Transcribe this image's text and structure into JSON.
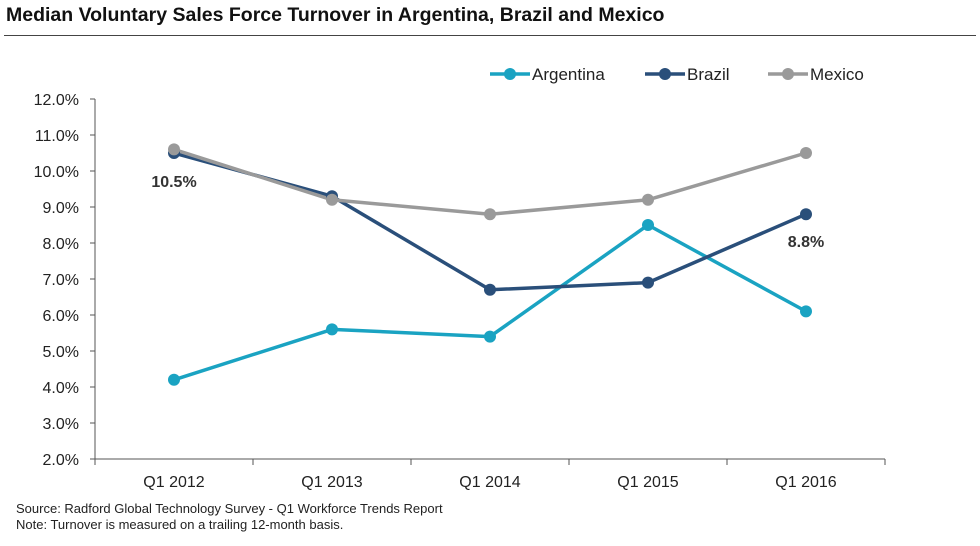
{
  "title": "Median Voluntary Sales Force Turnover in Argentina, Brazil and Mexico",
  "footer": {
    "source": "Source: Radford Global Technology Survey - Q1 Workforce Trends Report",
    "note": "Note: Turnover is measured on a trailing 12-month basis."
  },
  "chart_data": {
    "type": "line",
    "title": "Median Voluntary Sales Force Turnover in Argentina, Brazil and Mexico",
    "xlabel": "",
    "ylabel": "",
    "categories": [
      "Q1 2012",
      "Q1 2013",
      "Q1 2014",
      "Q1 2015",
      "Q1 2016"
    ],
    "ylim": [
      2.0,
      12.0
    ],
    "yticks": [
      "2.0%",
      "3.0%",
      "4.0%",
      "5.0%",
      "6.0%",
      "7.0%",
      "8.0%",
      "9.0%",
      "10.0%",
      "11.0%",
      "12.0%"
    ],
    "grid": false,
    "legend_position": "top-right",
    "series": [
      {
        "name": "Argentina",
        "color": "#1aa3c2",
        "values": [
          4.2,
          5.6,
          5.4,
          8.5,
          6.1
        ]
      },
      {
        "name": "Brazil",
        "color": "#2a4f7a",
        "values": [
          10.5,
          9.3,
          6.7,
          6.9,
          8.8
        ]
      },
      {
        "name": "Mexico",
        "color": "#9a9a9a",
        "values": [
          10.6,
          9.2,
          8.8,
          9.2,
          10.5
        ]
      }
    ],
    "annotations": [
      {
        "text": "10.5%",
        "series": "Brazil",
        "category": "Q1 2012"
      },
      {
        "text": "8.8%",
        "series": "Brazil",
        "category": "Q1 2016"
      }
    ]
  }
}
